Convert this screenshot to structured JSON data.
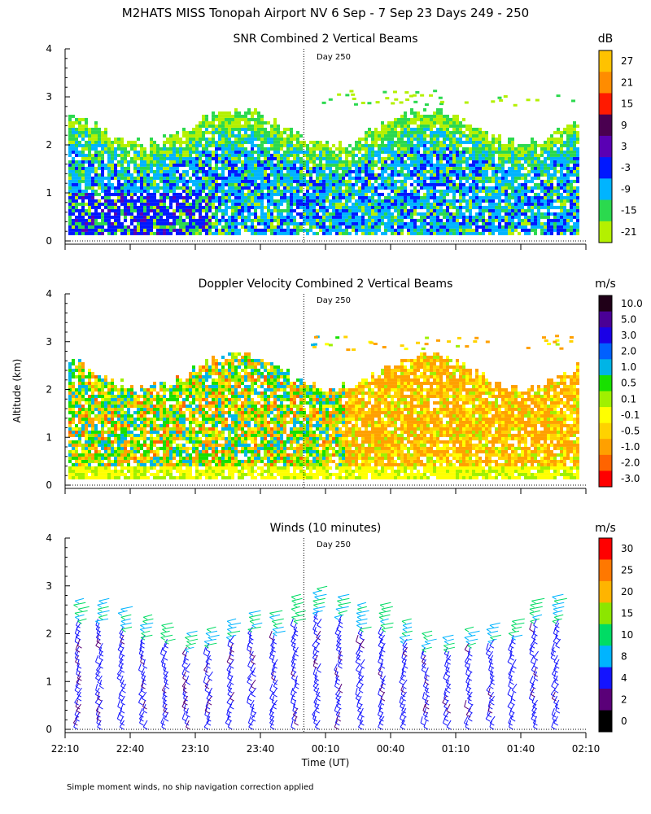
{
  "figure": {
    "title": "M2HATS MISS Tonopah Airport NV   6 Sep -  7 Sep 23 Days 249 - 250",
    "ylabel": "Altitude (km)",
    "xlabel": "Time (UT)",
    "footnote": "Simple moment winds, no ship navigation correction applied",
    "day_marker_label": "Day 250",
    "day_marker_time": "00:00"
  },
  "chart_data": [
    {
      "id": "snr",
      "type": "heatmap",
      "title": "SNR Combined 2 Vertical Beams",
      "ylabel": "Altitude (km)",
      "ylim": [
        0,
        4
      ],
      "yticks": [
        "0",
        "1",
        "2",
        "3",
        "4"
      ],
      "x_range_ut": [
        "22:10",
        "02:10"
      ],
      "xticks": [
        "22:10",
        "22:40",
        "23:10",
        "23:40",
        "00:10",
        "00:40",
        "01:10",
        "01:40",
        "02:10"
      ],
      "colorbar": {
        "unit": "dB",
        "labels": [
          "27",
          "21",
          "15",
          "9",
          "3",
          "-3",
          "-9",
          "-15",
          "-21"
        ],
        "colors": [
          "#ffc200",
          "#ff8c00",
          "#ff1a00",
          "#4a0050",
          "#5a00b4",
          "#0018ff",
          "#00b4ff",
          "#2bd94e",
          "#b4f000"
        ]
      },
      "data_top_km_approx": 2.5,
      "typical_value_range_db": [
        -21,
        9
      ]
    },
    {
      "id": "doppler",
      "type": "heatmap",
      "title": "Doppler Velocity Combined 2 Vertical Beams",
      "ylabel": "Altitude (km)",
      "ylim": [
        0,
        4
      ],
      "yticks": [
        "0",
        "1",
        "2",
        "3",
        "4"
      ],
      "x_range_ut": [
        "22:10",
        "02:10"
      ],
      "xticks": [
        "22:10",
        "22:40",
        "23:10",
        "23:40",
        "00:10",
        "00:40",
        "01:10",
        "01:40",
        "02:10"
      ],
      "colorbar": {
        "unit": "m/s",
        "labels": [
          "10.0",
          "5.0",
          "3.0",
          "2.0",
          "1.0",
          "0.5",
          "0.1",
          "-0.1",
          "-0.5",
          "-1.0",
          "-2.0",
          "-3.0"
        ],
        "colors": [
          "#200018",
          "#4a0096",
          "#1a00e6",
          "#0060ff",
          "#00b4e6",
          "#18e000",
          "#a0f000",
          "#ffff00",
          "#ffd200",
          "#ffa000",
          "#ff6400",
          "#ff0000"
        ]
      },
      "data_top_km_approx": 2.5,
      "typical_value_range_ms": [
        -2.0,
        1.0
      ]
    },
    {
      "id": "winds",
      "type": "scatter",
      "title": "Winds (10 minutes)",
      "ylabel": "Altitude (km)",
      "ylim": [
        0,
        4
      ],
      "yticks": [
        "0",
        "1",
        "2",
        "3",
        "4"
      ],
      "x_range_ut": [
        "22:10",
        "02:10"
      ],
      "xticks": [
        "22:10",
        "22:40",
        "23:10",
        "23:40",
        "00:10",
        "00:40",
        "01:10",
        "01:40",
        "02:10"
      ],
      "colorbar": {
        "unit": "m/s",
        "labels": [
          "30",
          "25",
          "20",
          "15",
          "10",
          "8",
          "4",
          "2",
          "0"
        ],
        "colors": [
          "#ff0000",
          "#ff7800",
          "#ffb400",
          "#8ce600",
          "#00dc64",
          "#00b4ff",
          "#1414ff",
          "#5a0078",
          "#000000"
        ]
      },
      "profiles_every_minutes": 10,
      "typical_speed_ms": [
        4,
        10
      ]
    }
  ]
}
